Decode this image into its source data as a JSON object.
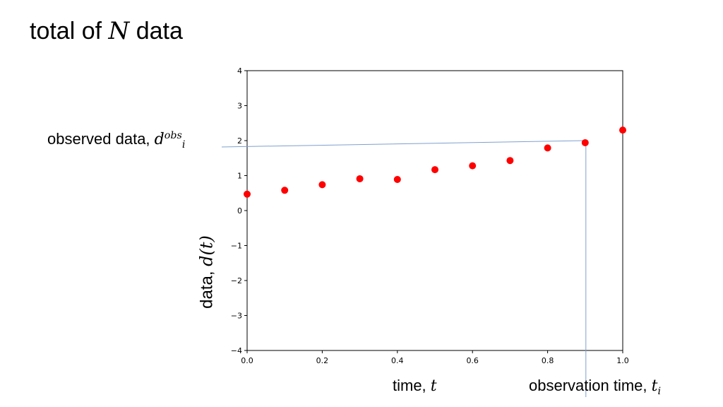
{
  "slide": {
    "title_prefix": "total of ",
    "title_var": "N",
    "title_suffix": " data"
  },
  "annotations": {
    "observed_prefix": "observed data, ",
    "observed_var": "d",
    "observed_sub": "i",
    "observed_sup": "obs",
    "time_prefix": "time, ",
    "time_var": "t",
    "obstime_prefix": "observation time, ",
    "obstime_var": "t",
    "obstime_sub": "i",
    "ylabel_prefix": "data, ",
    "ylabel_var": "d(t)"
  },
  "chart_data": {
    "type": "scatter",
    "x": [
      0.0,
      0.1,
      0.2,
      0.3,
      0.4,
      0.5,
      0.6,
      0.7,
      0.8,
      0.9,
      1.0
    ],
    "y": [
      0.47,
      0.58,
      0.74,
      0.91,
      0.89,
      1.17,
      1.28,
      1.43,
      1.79,
      1.94,
      2.3
    ],
    "xlim": [
      0.0,
      1.0
    ],
    "ylim": [
      -4,
      4
    ],
    "xticks": [
      "0.0",
      "0.2",
      "0.4",
      "0.6",
      "0.8",
      "1.0"
    ],
    "xtick_values": [
      0.0,
      0.2,
      0.4,
      0.6,
      0.8,
      1.0
    ],
    "yticks": [
      "4",
      "3",
      "2",
      "1",
      "0",
      "−1",
      "−2",
      "−3",
      "−4"
    ],
    "ytick_values": [
      4,
      3,
      2,
      1,
      0,
      -1,
      -2,
      -3,
      -4
    ],
    "marker_color": "#ff0000",
    "guide_color": "#7f9fd0",
    "highlight_index": 9,
    "grid": false
  }
}
